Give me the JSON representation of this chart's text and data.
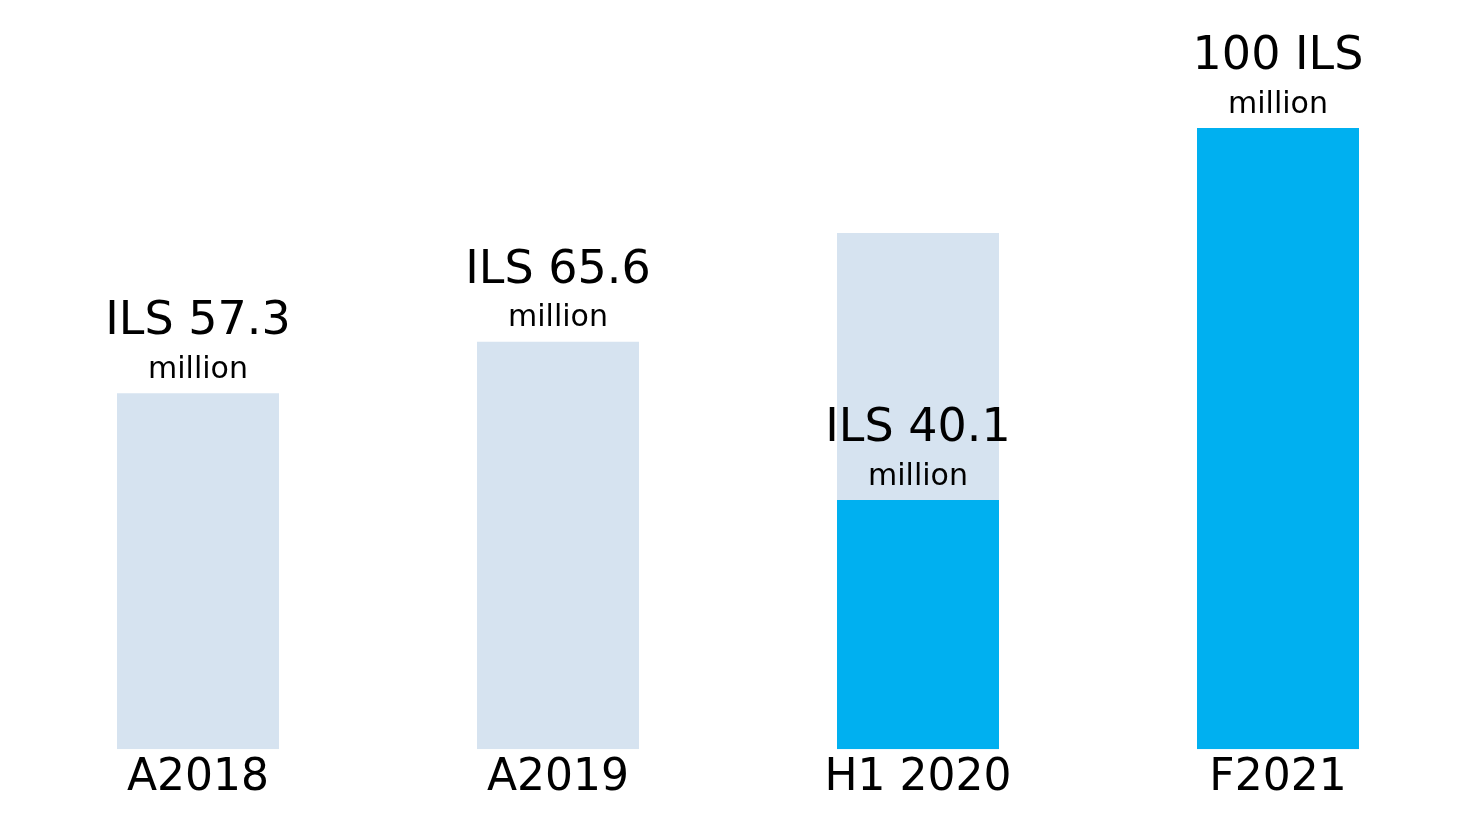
{
  "chart_data": {
    "type": "bar",
    "stacked": true,
    "legend": false,
    "grid": false,
    "categories": [
      "A2018",
      "A2019",
      "H1 2020",
      "F2021"
    ],
    "series": [
      {
        "color": "#00b0f0",
        "values": [
          null,
          null,
          40.1,
          100
        ],
        "value_labels": [
          null,
          null,
          "ILS 40.1\nmillion",
          "100 ILS\nmillion"
        ]
      },
      {
        "color": "#d6e3f0",
        "values": [
          57.3,
          65.6,
          43,
          null
        ],
        "value_labels": [
          "ILS 57.3\nmillion",
          "ILS 65.6\nmillion",
          null,
          null
        ]
      }
    ]
  }
}
